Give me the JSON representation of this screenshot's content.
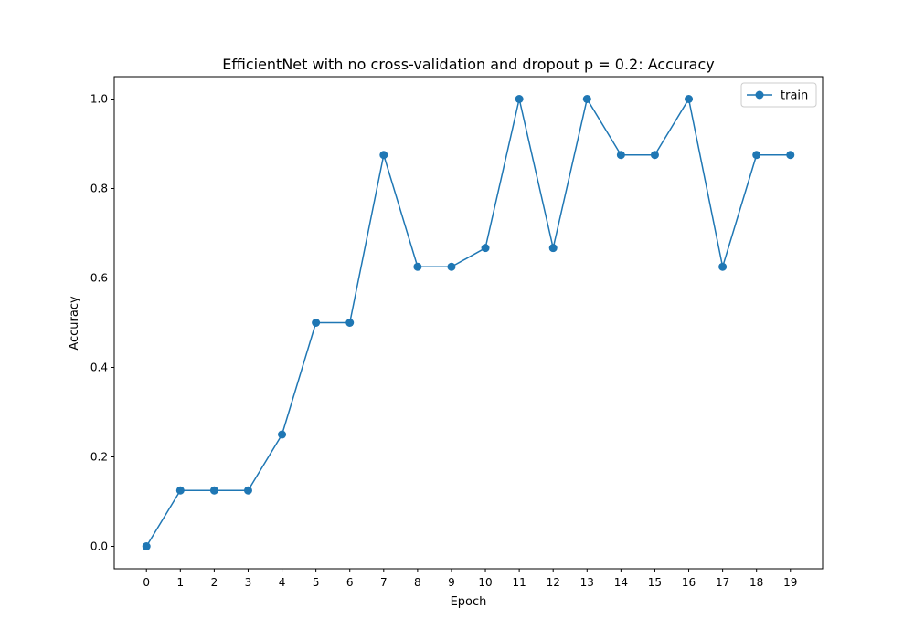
{
  "chart_data": {
    "type": "line",
    "title": "EfficientNet with no cross-validation and dropout p = 0.2: Accuracy",
    "xlabel": "Epoch",
    "ylabel": "Accuracy",
    "x": [
      0,
      1,
      2,
      3,
      4,
      5,
      6,
      7,
      8,
      9,
      10,
      11,
      12,
      13,
      14,
      15,
      16,
      17,
      18,
      19
    ],
    "xticks": [
      "0",
      "1",
      "2",
      "3",
      "4",
      "5",
      "6",
      "7",
      "8",
      "9",
      "10",
      "11",
      "12",
      "13",
      "14",
      "15",
      "16",
      "17",
      "18",
      "19"
    ],
    "yticks": [
      "0.0",
      "0.2",
      "0.4",
      "0.6",
      "0.8",
      "1.0"
    ],
    "ytick_values": [
      0.0,
      0.2,
      0.4,
      0.6,
      0.8,
      1.0
    ],
    "xlim": [
      -0.95,
      19.95
    ],
    "ylim": [
      -0.05,
      1.05
    ],
    "grid": false,
    "legend_position": "top-right",
    "series": [
      {
        "name": "train",
        "color": "#1f77b4",
        "marker": "circle",
        "values": [
          0.0,
          0.125,
          0.125,
          0.125,
          0.25,
          0.5,
          0.5,
          0.875,
          0.625,
          0.625,
          0.667,
          1.0,
          0.667,
          1.0,
          0.875,
          0.875,
          1.0,
          0.625,
          0.875,
          0.875
        ]
      }
    ]
  }
}
